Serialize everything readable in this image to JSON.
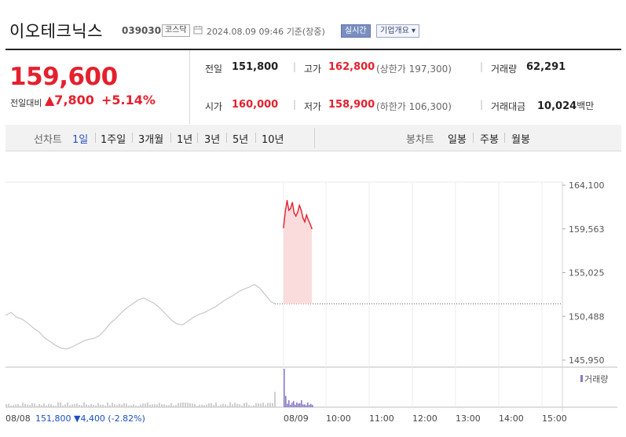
{
  "header": {
    "company_name": "이오테크닉스",
    "code": "039030",
    "market_badge": "코스닥",
    "datetime": "2024.08.09 09:46",
    "datetime_suffix": "기준(장중)",
    "realtime_button": "실시간",
    "company_info_button": "기업개요 ▾"
  },
  "quote": {
    "price": "159,600",
    "change_label": "전일대비",
    "change_value": "▲7,800",
    "change_percent": "+5.14%",
    "prev_close_label": "전일",
    "prev_close": "151,800",
    "open_label": "시가",
    "open": "160,000",
    "high_label": "고가",
    "high": "162,800",
    "upper_limit": "(상한가 197,300)",
    "low_label": "저가",
    "low": "158,900",
    "lower_limit": "(하한가 106,300)",
    "volume_label": "거래량",
    "volume": "62,291",
    "amount_label": "거래대금",
    "amount": "10,024",
    "amount_unit": "백만"
  },
  "tabs": {
    "line_chart_label": "선차트",
    "periods": [
      "1일",
      "1주일",
      "3개월",
      "1년",
      "3년",
      "5년",
      "10년"
    ],
    "active_period": "1일",
    "candle_chart_label": "봉차트",
    "candle_periods": [
      "일봉",
      "주봉",
      "월봉"
    ]
  },
  "colors": {
    "up": "#e5202e",
    "down": "#1d4fbf",
    "prev_line": "#c8c8c8",
    "today_fill": "#fbdcdc",
    "volume_prev": "#cfcfcf",
    "volume_today": "#8a7ac8"
  },
  "chart_data": {
    "type": "line",
    "y_ticks": [
      "164,100",
      "159,563",
      "155,025",
      "150,488",
      "145,950"
    ],
    "ylim": [
      145950,
      164100
    ],
    "x_tick_labels": [
      "08/08",
      "08/09",
      "10:00",
      "11:00",
      "12:00",
      "13:00",
      "14:00",
      "15:00"
    ],
    "volume_label": "거래량",
    "prev_day": {
      "label": "08/08",
      "close_text": "151,800",
      "change_text": "▼4,400",
      "change_pct_text": "(-2.82%)",
      "series": [
        150600,
        150900,
        150400,
        150200,
        149800,
        149300,
        148900,
        148300,
        147900,
        147500,
        147200,
        147100,
        147300,
        147600,
        147900,
        148100,
        148200,
        148500,
        149100,
        149800,
        150300,
        150900,
        151400,
        151800,
        152200,
        152400,
        152100,
        151800,
        151300,
        150700,
        150100,
        149700,
        149600,
        150000,
        150400,
        150700,
        150900,
        151200,
        151500,
        151900,
        152300,
        152600,
        153000,
        153300,
        153500,
        153800,
        153400,
        152700,
        152000
      ]
    },
    "today": {
      "label": "08/09",
      "reference_price": 151800,
      "series": [
        159700,
        161400,
        162500,
        161500,
        161700,
        162300,
        161200,
        160900,
        161300,
        162000,
        161500,
        160700,
        160300,
        161000,
        160500,
        160100,
        159600
      ]
    },
    "volume": {
      "prev_day_max_fraction": 0.36,
      "today_first_fraction": 1.0,
      "today_rest_fraction": 0.3
    }
  }
}
